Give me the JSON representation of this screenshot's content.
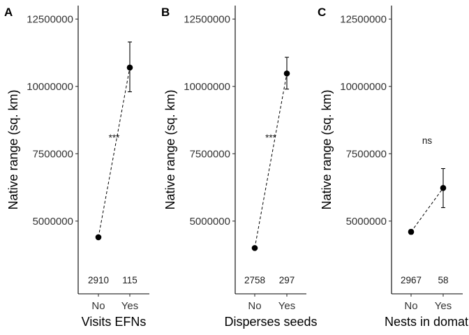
{
  "chart_data": [
    {
      "type": "scatter",
      "panel_label": "A",
      "xlabel": "Visits EFNs",
      "ylabel": "Native range (sq. km)",
      "categories": [
        "No",
        "Yes"
      ],
      "ylim": [
        2300000,
        13000000
      ],
      "yticks": [
        5000000,
        7500000,
        10000000,
        12500000
      ],
      "ytick_labels": [
        "5000000",
        "7500000",
        "10000000",
        "12500000"
      ],
      "values": [
        4400000,
        10700000
      ],
      "error_low": [
        4400000,
        9800000
      ],
      "error_high": [
        4400000,
        11650000
      ],
      "n_labels": [
        "2910",
        "115"
      ],
      "significance": "***",
      "significance_y": 8100000
    },
    {
      "type": "scatter",
      "panel_label": "B",
      "xlabel": "Disperses seeds",
      "ylabel": "Native range (sq. km)",
      "categories": [
        "No",
        "Yes"
      ],
      "ylim": [
        2300000,
        13000000
      ],
      "yticks": [
        5000000,
        7500000,
        10000000,
        12500000
      ],
      "ytick_labels": [
        "5000000",
        "7500000",
        "10000000",
        "12500000"
      ],
      "values": [
        4000000,
        10480000
      ],
      "error_low": [
        4000000,
        9900000
      ],
      "error_high": [
        4000000,
        11080000
      ],
      "n_labels": [
        "2758",
        "297"
      ],
      "significance": "***",
      "significance_y": 8100000
    },
    {
      "type": "scatter",
      "panel_label": "C",
      "xlabel": "Nests in domati",
      "ylabel": "Native range (sq. km)",
      "categories": [
        "No",
        "Yes"
      ],
      "ylim": [
        2300000,
        13000000
      ],
      "yticks": [
        5000000,
        7500000,
        10000000,
        12500000
      ],
      "ytick_labels": [
        "5000000",
        "7500000",
        "10000000",
        "12500000"
      ],
      "values": [
        4600000,
        6230000
      ],
      "error_low": [
        4520000,
        5500000
      ],
      "error_high": [
        4680000,
        6950000
      ],
      "n_labels": [
        "2967",
        "58"
      ],
      "significance": "ns",
      "significance_y": 8000000
    }
  ]
}
